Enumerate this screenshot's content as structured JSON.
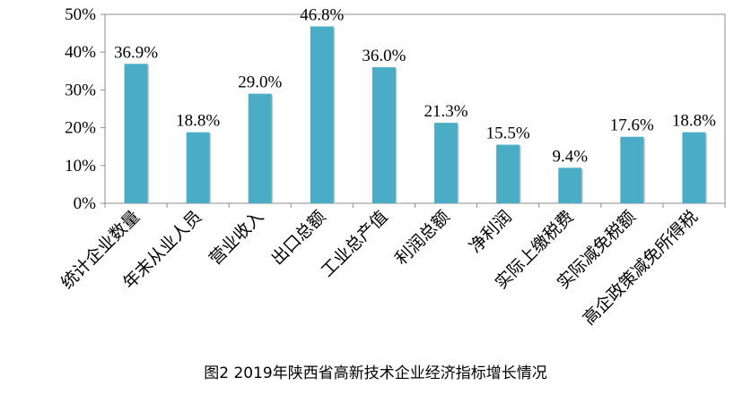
{
  "chart_data": {
    "type": "bar",
    "title": "图2   2019年陕西省高新技术企业经济指标增长情况",
    "categories": [
      "统计企业数量",
      "年末从业人员",
      "营业收入",
      "出口总额",
      "工业总产值",
      "利润总额",
      "净利润",
      "实际上缴税费",
      "实际减免税额",
      "高企政策减免所得税"
    ],
    "values": [
      36.9,
      18.8,
      29.0,
      46.8,
      36.0,
      21.3,
      15.5,
      9.4,
      17.6,
      18.8
    ],
    "data_labels": [
      "36.9%",
      "18.8%",
      "29.0%",
      "46.8%",
      "36.0%",
      "21.3%",
      "15.5%",
      "9.4%",
      "17.6%",
      "18.8%"
    ],
    "ylim": [
      0,
      50
    ],
    "yticks": [
      "0%",
      "10%",
      "20%",
      "30%",
      "40%",
      "50%"
    ],
    "xlabel": "",
    "ylabel": "",
    "grid": false,
    "bar_color": "#4bacc6"
  }
}
